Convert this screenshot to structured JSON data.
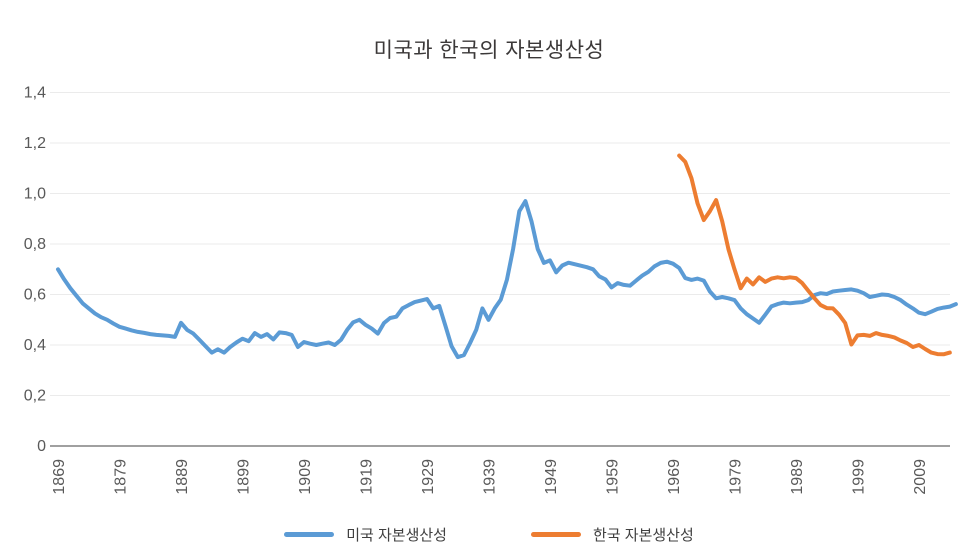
{
  "title": "미국과 한국의 자본생산성",
  "colors": {
    "us_line": "#5B9BD5",
    "korea_line": "#ED7D31",
    "gridline": "#ebebeb",
    "axis_line": "#808080",
    "tick_label": "#595959",
    "title_text": "#3b3838",
    "background": "#ffffff"
  },
  "legend": [
    {
      "label": "미국 자본생산성",
      "series": "us"
    },
    {
      "label": "한국 자본생산성",
      "series": "korea"
    }
  ],
  "chart_data": {
    "type": "line",
    "title": "미국과 한국의 자본생산성",
    "xlabel": "",
    "ylabel": "",
    "ylim": [
      0,
      1.4
    ],
    "y_tick_step": 0.2,
    "y_tick_labels": [
      "0",
      "0,2",
      "0,4",
      "0,6",
      "0,8",
      "1,0",
      "1,2",
      "1,4"
    ],
    "x_tick_years": [
      1869,
      1879,
      1889,
      1899,
      1909,
      1919,
      1929,
      1939,
      1949,
      1959,
      1969,
      1979,
      1989,
      1999,
      2009
    ],
    "x_tick_label_rotation": -90,
    "grid": "horizontal-faint",
    "legend_position": "bottom-center",
    "series": [
      {
        "name": "미국 자본생산성",
        "color": "#5B9BD5",
        "x_start": 1869,
        "x_step": 1,
        "values": [
          0.7,
          0.66,
          0.625,
          0.595,
          0.565,
          0.545,
          0.525,
          0.51,
          0.5,
          0.485,
          0.472,
          0.465,
          0.458,
          0.452,
          0.448,
          0.443,
          0.44,
          0.438,
          0.436,
          0.432,
          0.488,
          0.46,
          0.445,
          0.42,
          0.395,
          0.37,
          0.383,
          0.37,
          0.392,
          0.41,
          0.425,
          0.415,
          0.447,
          0.432,
          0.443,
          0.422,
          0.45,
          0.447,
          0.44,
          0.392,
          0.412,
          0.405,
          0.4,
          0.405,
          0.41,
          0.4,
          0.42,
          0.46,
          0.49,
          0.5,
          0.48,
          0.465,
          0.445,
          0.487,
          0.507,
          0.512,
          0.545,
          0.558,
          0.57,
          0.576,
          0.582,
          0.545,
          0.555,
          0.475,
          0.395,
          0.352,
          0.36,
          0.408,
          0.46,
          0.545,
          0.5,
          0.545,
          0.58,
          0.66,
          0.78,
          0.93,
          0.97,
          0.89,
          0.78,
          0.725,
          0.735,
          0.688,
          0.715,
          0.726,
          0.72,
          0.714,
          0.708,
          0.7,
          0.672,
          0.66,
          0.628,
          0.645,
          0.638,
          0.635,
          0.655,
          0.675,
          0.69,
          0.712,
          0.725,
          0.73,
          0.722,
          0.705,
          0.665,
          0.658,
          0.663,
          0.655,
          0.612,
          0.585,
          0.59,
          0.585,
          0.578,
          0.545,
          0.522,
          0.505,
          0.488,
          0.52,
          0.553,
          0.562,
          0.568,
          0.565,
          0.568,
          0.57,
          0.578,
          0.598,
          0.605,
          0.602,
          0.612,
          0.615,
          0.618,
          0.62,
          0.615,
          0.605,
          0.59,
          0.595,
          0.6,
          0.598,
          0.59,
          0.578,
          0.56,
          0.545,
          0.528,
          0.522,
          0.532,
          0.543,
          0.548,
          0.552,
          0.562
        ]
      },
      {
        "name": "한국 자본생산성",
        "color": "#ED7D31",
        "x_start": 1970,
        "x_step": 1,
        "values": [
          1.15,
          1.125,
          1.06,
          0.96,
          0.895,
          0.93,
          0.974,
          0.89,
          0.78,
          0.7,
          0.625,
          0.663,
          0.64,
          0.668,
          0.65,
          0.663,
          0.668,
          0.664,
          0.668,
          0.665,
          0.645,
          0.615,
          0.585,
          0.558,
          0.546,
          0.545,
          0.52,
          0.487,
          0.402,
          0.438,
          0.44,
          0.436,
          0.447,
          0.44,
          0.436,
          0.43,
          0.418,
          0.408,
          0.392,
          0.4,
          0.384,
          0.37,
          0.364,
          0.363,
          0.37
        ]
      }
    ]
  },
  "geometry_note": ""
}
